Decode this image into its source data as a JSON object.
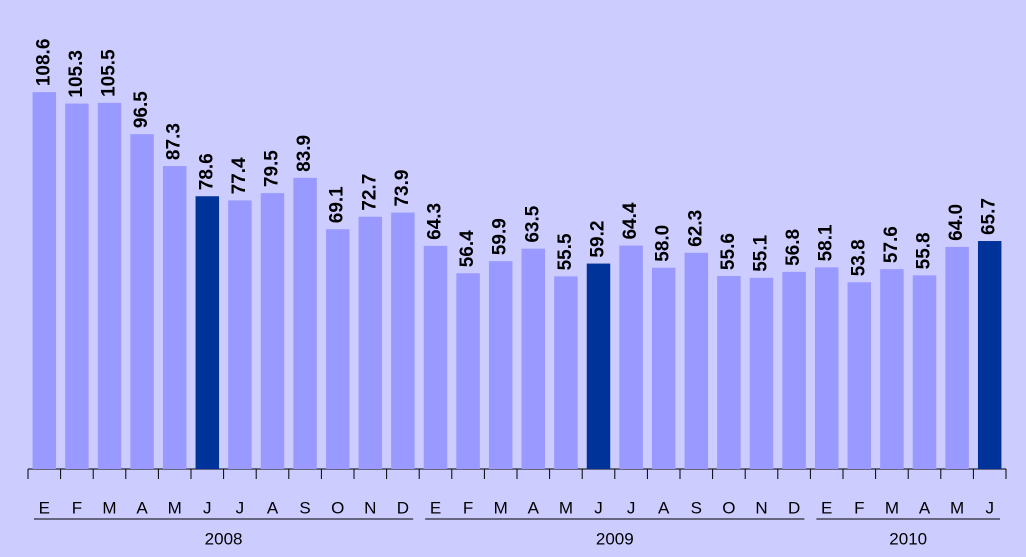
{
  "chart_data": {
    "type": "bar",
    "categories": [
      "E",
      "F",
      "M",
      "A",
      "M",
      "J",
      "J",
      "A",
      "S",
      "O",
      "N",
      "D",
      "E",
      "F",
      "M",
      "A",
      "M",
      "J",
      "J",
      "A",
      "S",
      "O",
      "N",
      "D",
      "E",
      "F",
      "M",
      "A",
      "M",
      "J"
    ],
    "values": [
      108.6,
      105.3,
      105.5,
      96.5,
      87.3,
      78.6,
      77.4,
      79.5,
      83.9,
      69.1,
      72.7,
      73.9,
      64.3,
      56.4,
      59.9,
      63.5,
      55.5,
      59.2,
      64.4,
      58.0,
      62.3,
      55.6,
      55.1,
      56.8,
      58.1,
      53.8,
      57.6,
      55.8,
      64.0,
      65.7
    ],
    "value_labels": [
      "108.6",
      "105.3",
      "105.5",
      "96.5",
      "87.3",
      "78.6",
      "77.4",
      "79.5",
      "83.9",
      "69.1",
      "72.7",
      "73.9",
      "64.3",
      "56.4",
      "59.9",
      "63.5",
      "55.5",
      "59.2",
      "64.4",
      "58.0",
      "62.3",
      "55.6",
      "55.1",
      "56.8",
      "58.1",
      "53.8",
      "57.6",
      "55.8",
      "64.0",
      "65.7"
    ],
    "colors": [
      "#9999ff",
      "#9999ff",
      "#9999ff",
      "#9999ff",
      "#9999ff",
      "#003399",
      "#9999ff",
      "#9999ff",
      "#9999ff",
      "#9999ff",
      "#9999ff",
      "#9999ff",
      "#9999ff",
      "#9999ff",
      "#9999ff",
      "#9999ff",
      "#9999ff",
      "#003399",
      "#9999ff",
      "#9999ff",
      "#9999ff",
      "#9999ff",
      "#9999ff",
      "#9999ff",
      "#9999ff",
      "#9999ff",
      "#9999ff",
      "#9999ff",
      "#9999ff",
      "#003399"
    ],
    "groups": [
      {
        "label": "2008",
        "size": 12
      },
      {
        "label": "2009",
        "size": 12
      },
      {
        "label": "2010",
        "size": 6
      }
    ],
    "ylim": [
      0,
      134
    ]
  }
}
